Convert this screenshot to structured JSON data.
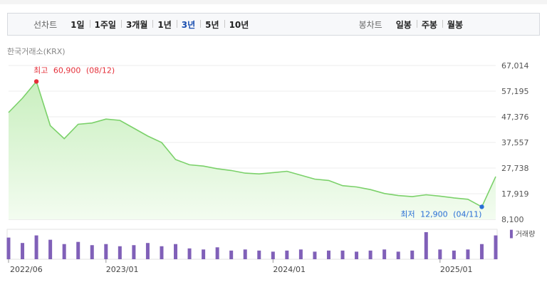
{
  "tabs": {
    "period_label": "선차트",
    "periods": [
      "1일",
      "1주일",
      "3개월",
      "1년",
      "3년",
      "5년",
      "10년"
    ],
    "active_period": "3년",
    "candle_label": "봉차트",
    "candles": [
      "일봉",
      "주봉",
      "월봉"
    ]
  },
  "source_label": "한국거래소(KRX)",
  "colors": {
    "line": "#7bd16a",
    "fill_top": "#c9efbf",
    "high": "#e5303a",
    "low": "#2a6fd6",
    "volume": "#8060b8",
    "active_tab": "#1a4fb0"
  },
  "chart_data": {
    "type": "area",
    "x_start": "2022/06",
    "x_end": "2025/05",
    "y_ticks": [
      "67,014",
      "57,195",
      "47,376",
      "37,557",
      "27,738",
      "17,919",
      "8,100"
    ],
    "ylim": [
      8100,
      67014
    ],
    "x_ticks": [
      "2022/06",
      "2023/01",
      "2024/01",
      "2025/01"
    ],
    "x": [
      "2022/06",
      "2022/07",
      "2022/08",
      "2022/09",
      "2022/10",
      "2022/11",
      "2022/12",
      "2023/01",
      "2023/02",
      "2023/03",
      "2023/04",
      "2023/05",
      "2023/06",
      "2023/07",
      "2023/08",
      "2023/09",
      "2023/10",
      "2023/11",
      "2023/12",
      "2024/01",
      "2024/02",
      "2024/03",
      "2024/04",
      "2024/05",
      "2024/06",
      "2024/07",
      "2024/08",
      "2024/09",
      "2024/10",
      "2024/11",
      "2024/12",
      "2025/01",
      "2025/02",
      "2025/03",
      "2025/04",
      "2025/05"
    ],
    "price": [
      49000,
      54500,
      60900,
      44000,
      39000,
      44500,
      45000,
      46500,
      46000,
      43000,
      40000,
      37500,
      31000,
      29000,
      28500,
      27500,
      26800,
      25800,
      25500,
      26000,
      26500,
      25000,
      23500,
      23000,
      21000,
      20500,
      19500,
      18000,
      17200,
      16800,
      17500,
      17000,
      16300,
      15800,
      12900,
      24500
    ],
    "volume": [
      2.0,
      1.5,
      2.2,
      1.8,
      1.4,
      1.6,
      1.3,
      1.4,
      1.2,
      1.3,
      1.5,
      1.2,
      1.4,
      1.0,
      0.9,
      1.1,
      0.8,
      0.9,
      0.8,
      0.7,
      0.8,
      0.9,
      0.7,
      0.8,
      0.8,
      0.7,
      0.8,
      0.9,
      0.7,
      0.8,
      2.5,
      0.9,
      0.8,
      0.9,
      1.4,
      2.2
    ],
    "high": {
      "label": "최고",
      "value_text": "60,900",
      "date_text": "(08/12)",
      "value": 60900
    },
    "low": {
      "label": "최저",
      "value_text": "12,900",
      "date_text": "(04/11)",
      "value": 12900
    },
    "volume_label": "거래량",
    "grid": true
  }
}
